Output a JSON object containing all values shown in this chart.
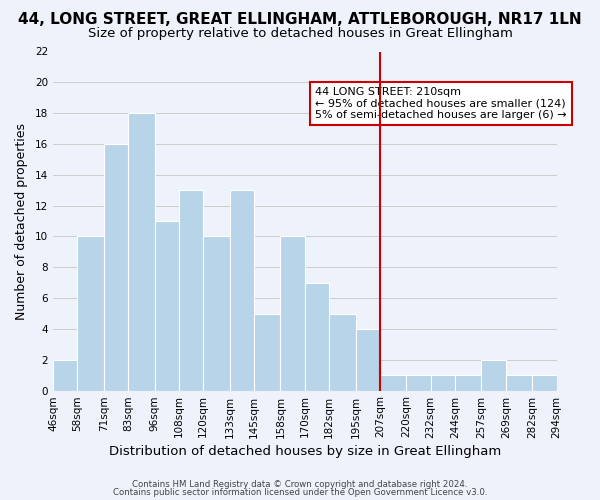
{
  "title": "44, LONG STREET, GREAT ELLINGHAM, ATTLEBOROUGH, NR17 1LN",
  "subtitle": "Size of property relative to detached houses in Great Ellingham",
  "xlabel": "Distribution of detached houses by size in Great Ellingham",
  "ylabel": "Number of detached properties",
  "footer1": "Contains HM Land Registry data © Crown copyright and database right 2024.",
  "footer2": "Contains public sector information licensed under the Open Government Licence v3.0.",
  "bar_edges": [
    46,
    58,
    71,
    83,
    96,
    108,
    120,
    133,
    145,
    158,
    170,
    182,
    195,
    207,
    220,
    232,
    244,
    257,
    269,
    282,
    294
  ],
  "bar_heights": [
    2,
    10,
    16,
    18,
    11,
    13,
    10,
    13,
    5,
    10,
    7,
    5,
    4,
    1,
    1,
    1,
    1,
    2,
    1,
    1
  ],
  "bar_color": "#b8d4e8",
  "bar_edgecolor": "#ffffff",
  "bar_linewidth": 0.8,
  "vline_x": 207,
  "vline_color": "#cc0000",
  "ylim": [
    0,
    22
  ],
  "yticks": [
    0,
    2,
    4,
    6,
    8,
    10,
    12,
    14,
    16,
    18,
    20,
    22
  ],
  "annotation_title": "44 LONG STREET: 210sqm",
  "annotation_line1": "← 95% of detached houses are smaller (124)",
  "annotation_line2": "5% of semi-detached houses are larger (6) →",
  "grid_color": "#cccccc",
  "background_color": "#eef2fb",
  "title_fontsize": 11,
  "subtitle_fontsize": 9.5,
  "tick_label_fontsize": 7.5,
  "xlabel_fontsize": 9.5,
  "ylabel_fontsize": 9
}
